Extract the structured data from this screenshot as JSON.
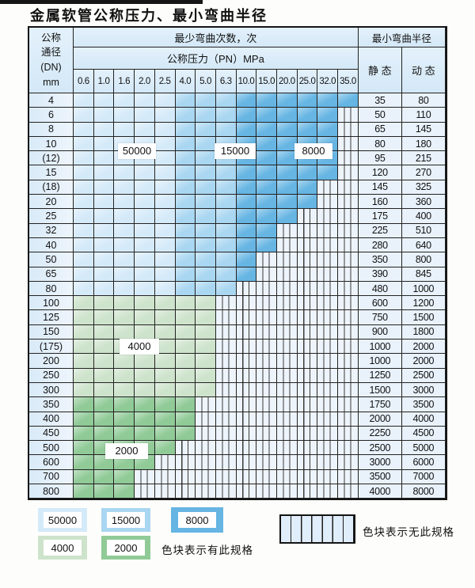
{
  "title": "金属软管公称压力、最小弯曲半径",
  "colors": {
    "c50000": "#d5eaf9",
    "c15000": "#a9d6f1",
    "c8000": "#66b5e3",
    "c4000": "#cde3cb",
    "c2000": "#90ca97",
    "hatch_bg": "#eef4fb",
    "header_bg": "#d9ebf8",
    "border": "#141414"
  },
  "table": {
    "corner_lines": [
      "公称",
      "通径",
      "(DN)",
      "mm"
    ],
    "bend_header": "最少弯曲次数，次",
    "pressure_header": "公称压力（PN）MPa",
    "radius_header": "最小弯曲半径",
    "static_label": "静 态",
    "dynamic_label": "动 态",
    "pressure_columns": [
      "0.6",
      "1.0",
      "1.6",
      "2.0",
      "2.5",
      "4.0",
      "5.0",
      "6.3",
      "10.0",
      "15.0",
      "20.0",
      "25.0",
      "32.0",
      "35.0"
    ],
    "blue_bands": {
      "c50000": [
        0,
        4
      ],
      "c15000": [
        5,
        7
      ],
      "c8000": [
        8,
        13
      ]
    },
    "rows": [
      {
        "dn": "4",
        "last": 13,
        "shade": "blue",
        "static": "35",
        "dynamic": "80"
      },
      {
        "dn": "6",
        "last": 12,
        "shade": "blue",
        "static": "50",
        "dynamic": "110"
      },
      {
        "dn": "8",
        "last": 12,
        "shade": "blue",
        "static": "65",
        "dynamic": "145"
      },
      {
        "dn": "10",
        "last": 12,
        "shade": "blue",
        "static": "80",
        "dynamic": "180"
      },
      {
        "dn": "(12)",
        "last": 12,
        "shade": "blue",
        "static": "95",
        "dynamic": "215"
      },
      {
        "dn": "15",
        "last": 12,
        "shade": "blue",
        "static": "120",
        "dynamic": "270"
      },
      {
        "dn": "(18)",
        "last": 11,
        "shade": "blue",
        "static": "145",
        "dynamic": "325"
      },
      {
        "dn": "20",
        "last": 11,
        "shade": "blue",
        "static": "160",
        "dynamic": "360"
      },
      {
        "dn": "25",
        "last": 10,
        "shade": "blue",
        "static": "175",
        "dynamic": "400"
      },
      {
        "dn": "32",
        "last": 9,
        "shade": "blue",
        "static": "225",
        "dynamic": "510"
      },
      {
        "dn": "40",
        "last": 9,
        "shade": "blue",
        "static": "280",
        "dynamic": "640"
      },
      {
        "dn": "50",
        "last": 8,
        "shade": "blue",
        "static": "350",
        "dynamic": "800"
      },
      {
        "dn": "65",
        "last": 8,
        "shade": "blue",
        "static": "390",
        "dynamic": "845"
      },
      {
        "dn": "80",
        "last": 7,
        "shade": "blue",
        "static": "480",
        "dynamic": "1000"
      },
      {
        "dn": "100",
        "last": 6,
        "shade": "c4000",
        "static": "600",
        "dynamic": "1200"
      },
      {
        "dn": "125",
        "last": 6,
        "shade": "c4000",
        "static": "750",
        "dynamic": "1500"
      },
      {
        "dn": "150",
        "last": 6,
        "shade": "c4000",
        "static": "900",
        "dynamic": "1800"
      },
      {
        "dn": "(175)",
        "last": 6,
        "shade": "c4000",
        "static": "1000",
        "dynamic": "2000"
      },
      {
        "dn": "200",
        "last": 6,
        "shade": "c4000",
        "static": "1000",
        "dynamic": "2000"
      },
      {
        "dn": "250",
        "last": 6,
        "shade": "c4000",
        "static": "1250",
        "dynamic": "2500"
      },
      {
        "dn": "300",
        "last": 6,
        "shade": "c4000",
        "static": "1500",
        "dynamic": "3000"
      },
      {
        "dn": "350",
        "last": 5,
        "shade": "c2000",
        "static": "1750",
        "dynamic": "3500"
      },
      {
        "dn": "400",
        "last": 5,
        "shade": "c2000",
        "static": "2000",
        "dynamic": "4000"
      },
      {
        "dn": "450",
        "last": 5,
        "shade": "c2000",
        "static": "2250",
        "dynamic": "4500"
      },
      {
        "dn": "500",
        "last": 4,
        "shade": "c2000",
        "static": "2500",
        "dynamic": "5000"
      },
      {
        "dn": "600",
        "last": 3,
        "shade": "c2000",
        "static": "3000",
        "dynamic": "6000"
      },
      {
        "dn": "700",
        "last": 2,
        "shade": "c2000",
        "static": "3500",
        "dynamic": "7000"
      },
      {
        "dn": "800",
        "last": 2,
        "shade": "c2000",
        "static": "4000",
        "dynamic": "8000"
      }
    ],
    "zone_labels": [
      {
        "text": "50000"
      },
      {
        "text": "15000"
      },
      {
        "text": "8000"
      },
      {
        "text": "4000"
      },
      {
        "text": "2000"
      }
    ]
  },
  "legend": {
    "cycle_swatches": [
      {
        "label": "50000",
        "color_key": "c50000"
      },
      {
        "label": "15000",
        "color_key": "c15000"
      },
      {
        "label": "8000",
        "color_key": "c8000"
      },
      {
        "label": "4000",
        "color_key": "c4000"
      },
      {
        "label": "2000",
        "color_key": "c2000"
      }
    ],
    "has_spec_text": "色块表示有此规格",
    "no_spec_text": "色块表示无此规格"
  }
}
